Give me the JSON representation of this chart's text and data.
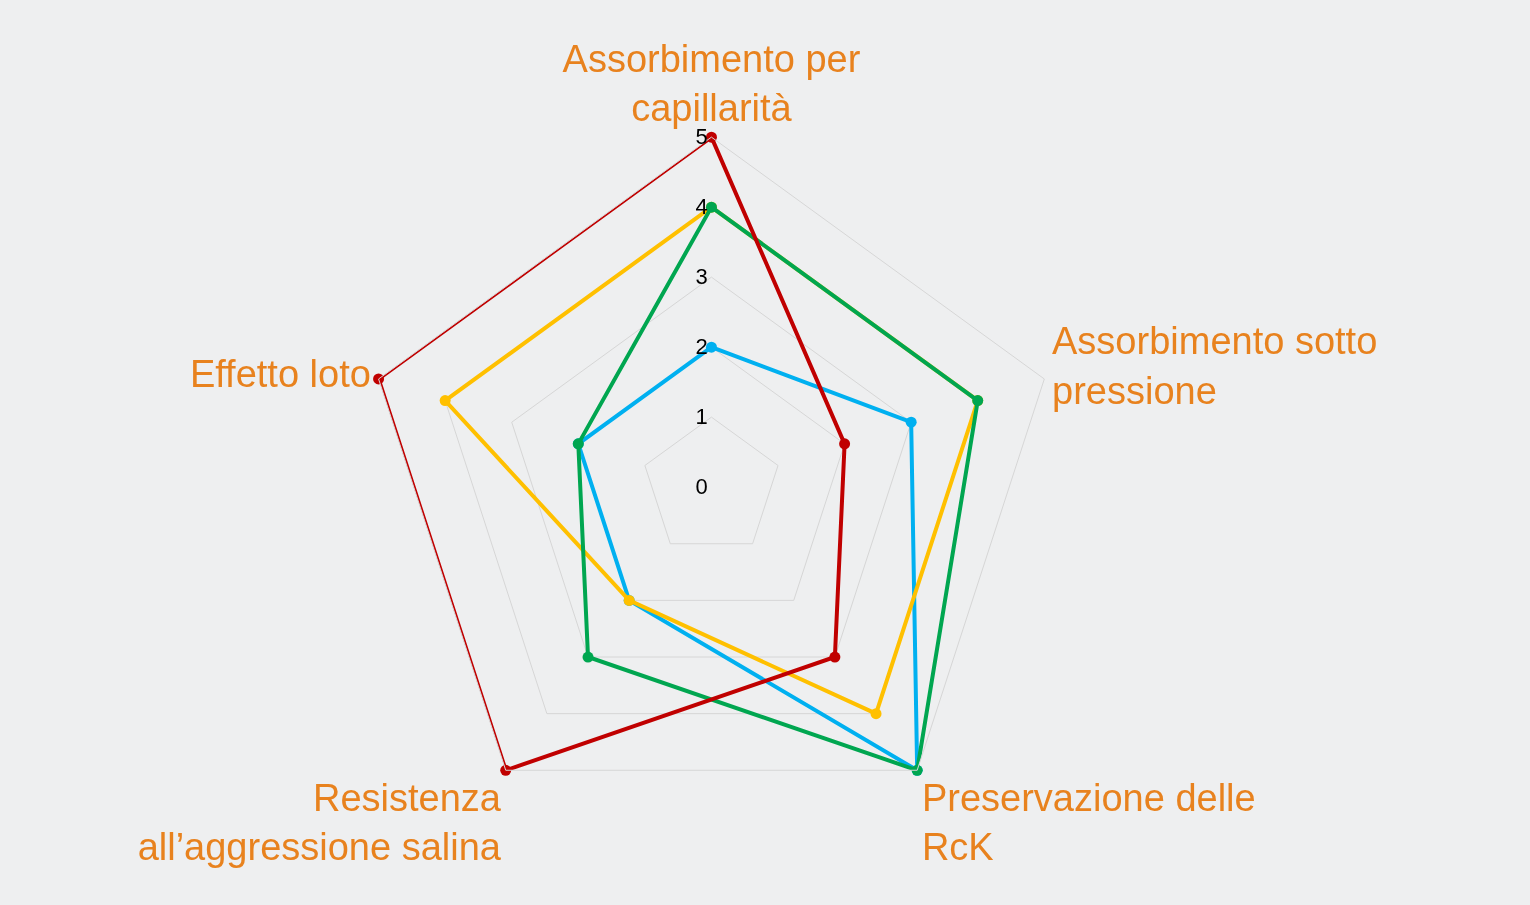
{
  "chart_data": {
    "type": "radar",
    "categories": [
      "Assorbimento per\ncapillarità",
      "Assorbimento sotto\npressione",
      "Preservazione delle\nRcK",
      "Resistenza\nall’aggressione salina",
      "Effetto loto"
    ],
    "series": [
      {
        "color": "#00b0f0",
        "values": [
          2,
          3,
          5,
          2,
          2
        ]
      },
      {
        "color": "#ffc000",
        "values": [
          4,
          4,
          4,
          2,
          4
        ]
      },
      {
        "color": "#00a650",
        "values": [
          4,
          4,
          5,
          3,
          2
        ]
      },
      {
        "color": "#c00000",
        "values": [
          5,
          2,
          3,
          5,
          5
        ]
      }
    ],
    "ylim": [
      0,
      5
    ],
    "yticks": [
      0,
      1,
      2,
      3,
      4,
      5
    ],
    "grid": true,
    "marker": "circle",
    "legend": false
  }
}
